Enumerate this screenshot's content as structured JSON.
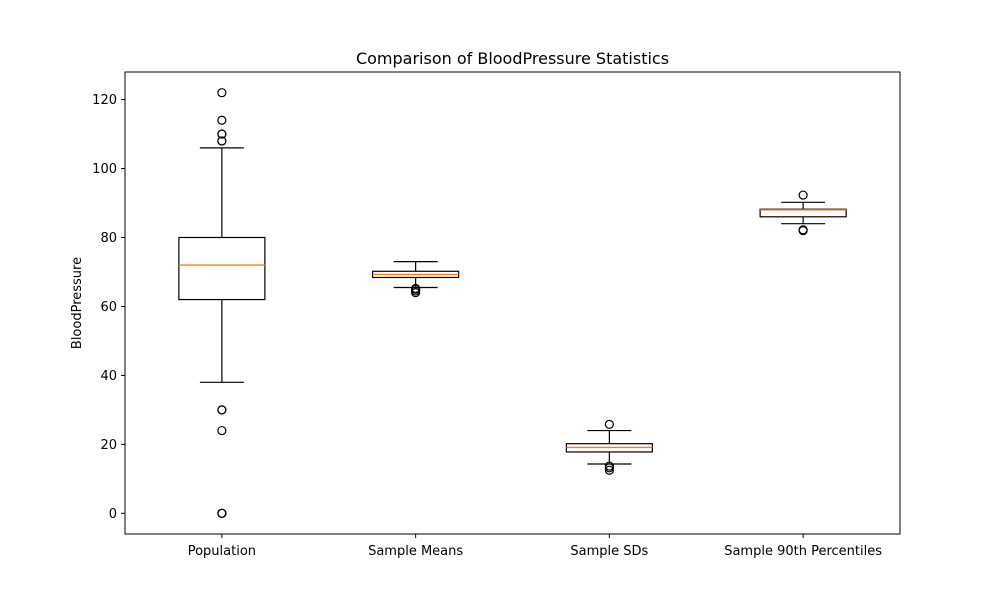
{
  "chart_data": {
    "type": "box",
    "title": "Comparison of BloodPressure Statistics",
    "xlabel": "",
    "ylabel": "BloodPressure",
    "ylim": [
      -6,
      128
    ],
    "yticks": [
      0,
      20,
      40,
      60,
      80,
      100,
      120
    ],
    "grid": false,
    "colors": {
      "box": "#000000",
      "median": "#ff7f0e",
      "outlier": "#000000",
      "background": "#ffffff"
    },
    "boxes": [
      {
        "label": "Population",
        "whisker_low": 38,
        "q1": 62,
        "median": 72,
        "q3": 80,
        "whisker_high": 106,
        "outliers": [
          0,
          0,
          0,
          24,
          30,
          30,
          108,
          108,
          110,
          110,
          114,
          122
        ]
      },
      {
        "label": "Sample Means",
        "whisker_low": 65.5,
        "q1": 68.4,
        "median": 69.3,
        "q3": 70.2,
        "whisker_high": 73,
        "outliers": [
          64,
          64.5,
          65,
          65.2
        ]
      },
      {
        "label": "Sample SDs",
        "whisker_low": 14.3,
        "q1": 17.8,
        "median": 19.1,
        "q3": 20.2,
        "whisker_high": 24,
        "outliers": [
          12.5,
          13.2,
          13.7,
          25.8
        ]
      },
      {
        "label": "Sample 90th Percentiles",
        "whisker_low": 84,
        "q1": 86,
        "median": 88,
        "q3": 88.2,
        "whisker_high": 90.2,
        "outliers": [
          82,
          82.2,
          92.3
        ]
      }
    ]
  }
}
